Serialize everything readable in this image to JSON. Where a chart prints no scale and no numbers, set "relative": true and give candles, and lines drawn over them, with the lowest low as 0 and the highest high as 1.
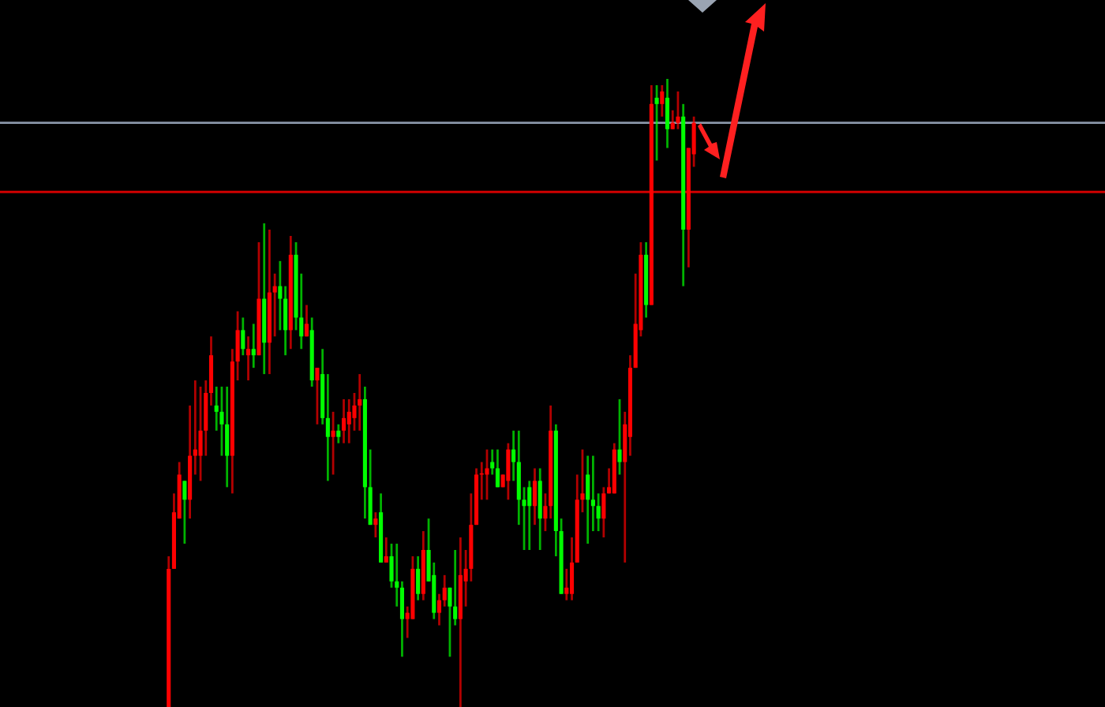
{
  "chart_data": {
    "type": "candlestick",
    "relative": true,
    "categories": [
      null,
      null,
      null,
      null,
      null,
      null,
      null,
      null,
      null,
      null,
      null,
      null,
      null,
      null,
      null,
      null,
      null,
      null,
      null,
      null,
      null,
      null,
      null,
      null,
      null,
      null,
      null,
      null,
      null,
      null,
      null,
      null,
      null,
      null,
      null,
      null,
      null,
      null,
      null,
      null,
      null,
      null,
      null,
      null,
      null,
      null,
      null,
      null,
      null,
      null,
      null,
      null,
      null,
      null,
      null,
      null,
      null,
      null,
      null,
      null,
      null,
      null,
      null,
      null,
      null,
      null,
      null,
      null,
      null,
      null,
      null,
      null,
      null,
      null,
      null,
      null,
      null,
      null,
      null,
      null,
      null,
      null,
      null,
      null,
      null,
      null,
      null,
      null,
      null,
      null,
      null,
      null,
      null,
      null,
      null,
      null,
      null,
      null,
      null,
      null
    ],
    "ohlc": [
      [
        0,
        0.24,
        0,
        0.22
      ],
      [
        0.22,
        0.34,
        0.22,
        0.31
      ],
      [
        0.3,
        0.39,
        0.3,
        0.37
      ],
      [
        0.36,
        0.36,
        0.26,
        0.33
      ],
      [
        0.33,
        0.48,
        0.3,
        0.4
      ],
      [
        0.4,
        0.52,
        0.37,
        0.41
      ],
      [
        0.4,
        0.51,
        0.36,
        0.44
      ],
      [
        0.44,
        0.52,
        0.4,
        0.5
      ],
      [
        0.5,
        0.59,
        0.48,
        0.56
      ],
      [
        0.48,
        0.51,
        0.44,
        0.47
      ],
      [
        0.47,
        0.51,
        0.4,
        0.45
      ],
      [
        0.45,
        0.51,
        0.35,
        0.4
      ],
      [
        0.4,
        0.57,
        0.34,
        0.55
      ],
      [
        0.55,
        0.63,
        0.52,
        0.6
      ],
      [
        0.6,
        0.62,
        0.56,
        0.57
      ],
      [
        0.56,
        0.59,
        0.52,
        0.57
      ],
      [
        0.57,
        0.61,
        0.54,
        0.56
      ],
      [
        0.56,
        0.74,
        0.56,
        0.65
      ],
      [
        0.65,
        0.77,
        0.53,
        0.58
      ],
      [
        0.58,
        0.76,
        0.53,
        0.66
      ],
      [
        0.66,
        0.69,
        0.59,
        0.67
      ],
      [
        0.67,
        0.71,
        0.6,
        0.65
      ],
      [
        0.65,
        0.67,
        0.56,
        0.6
      ],
      [
        0.6,
        0.75,
        0.57,
        0.72
      ],
      [
        0.72,
        0.74,
        0.6,
        0.62
      ],
      [
        0.62,
        0.69,
        0.57,
        0.59
      ],
      [
        0.59,
        0.64,
        0.59,
        0.61
      ],
      [
        0.6,
        0.62,
        0.51,
        0.52
      ],
      [
        0.52,
        0.54,
        0.45,
        0.54
      ],
      [
        0.53,
        0.57,
        0.45,
        0.46
      ],
      [
        0.46,
        0.53,
        0.36,
        0.43
      ],
      [
        0.43,
        0.47,
        0.37,
        0.44
      ],
      [
        0.44,
        0.45,
        0.42,
        0.43
      ],
      [
        0.44,
        0.49,
        0.42,
        0.46
      ],
      [
        0.45,
        0.49,
        0.42,
        0.47
      ],
      [
        0.46,
        0.5,
        0.44,
        0.48
      ],
      [
        0.48,
        0.53,
        0.44,
        0.49
      ],
      [
        0.49,
        0.51,
        0.3,
        0.35
      ],
      [
        0.35,
        0.41,
        0.29,
        0.29
      ],
      [
        0.29,
        0.31,
        0.27,
        0.3
      ],
      [
        0.31,
        0.34,
        0.23,
        0.23
      ],
      [
        0.23,
        0.27,
        0.23,
        0.24
      ],
      [
        0.24,
        0.26,
        0.19,
        0.2
      ],
      [
        0.2,
        0.26,
        0.16,
        0.19
      ],
      [
        0.19,
        0.2,
        0.08,
        0.14
      ],
      [
        0.14,
        0.16,
        0.11,
        0.15
      ],
      [
        0.14,
        0.24,
        0.14,
        0.22
      ],
      [
        0.22,
        0.24,
        0.17,
        0.18
      ],
      [
        0.18,
        0.28,
        0.17,
        0.25
      ],
      [
        0.25,
        0.3,
        0.2,
        0.2
      ],
      [
        0.21,
        0.23,
        0.14,
        0.15
      ],
      [
        0.15,
        0.18,
        0.13,
        0.17
      ],
      [
        0.17,
        0.21,
        0.16,
        0.19
      ],
      [
        0.19,
        0.19,
        0.08,
        0.16
      ],
      [
        0.16,
        0.25,
        0.13,
        0.14
      ],
      [
        0.14,
        0.27,
        0,
        0.21
      ],
      [
        0.2,
        0.25,
        0.16,
        0.22
      ],
      [
        0.22,
        0.34,
        0.2,
        0.29
      ],
      [
        0.29,
        0.38,
        0.29,
        0.37
      ],
      [
        0.37,
        0.39,
        0.33,
        0.37
      ],
      [
        0.37,
        0.41,
        0.33,
        0.38
      ],
      [
        0.39,
        0.41,
        0.37,
        0.38
      ],
      [
        0.38,
        0.41,
        0.35,
        0.35
      ],
      [
        0.35,
        0.37,
        0.35,
        0.37
      ],
      [
        0.36,
        0.42,
        0.33,
        0.41
      ],
      [
        0.41,
        0.44,
        0.36,
        0.39
      ],
      [
        0.39,
        0.44,
        0.29,
        0.33
      ],
      [
        0.33,
        0.35,
        0.25,
        0.32
      ],
      [
        0.35,
        0.36,
        0.25,
        0.32
      ],
      [
        0.32,
        0.38,
        0.29,
        0.36
      ],
      [
        0.36,
        0.38,
        0.25,
        0.3
      ],
      [
        0.3,
        0.34,
        0.28,
        0.32
      ],
      [
        0.32,
        0.48,
        0.3,
        0.44
      ],
      [
        0.44,
        0.45,
        0.24,
        0.28
      ],
      [
        0.28,
        0.3,
        0.18,
        0.18
      ],
      [
        0.18,
        0.22,
        0.17,
        0.19
      ],
      [
        0.18,
        0.27,
        0.17,
        0.23
      ],
      [
        0.23,
        0.37,
        0.23,
        0.33
      ],
      [
        0.33,
        0.41,
        0.31,
        0.34
      ],
      [
        0.37,
        0.4,
        0.26,
        0.33
      ],
      [
        0.33,
        0.4,
        0.28,
        0.32
      ],
      [
        0.32,
        0.34,
        0.28,
        0.3
      ],
      [
        0.3,
        0.35,
        0.27,
        0.34
      ],
      [
        0.34,
        0.38,
        0.34,
        0.35
      ],
      [
        0.34,
        0.42,
        0.34,
        0.41
      ],
      [
        0.41,
        0.49,
        0.37,
        0.39
      ],
      [
        0.39,
        0.47,
        0.23,
        0.45
      ],
      [
        0.43,
        0.56,
        0.4,
        0.54
      ],
      [
        0.54,
        0.69,
        0.54,
        0.61
      ],
      [
        0.6,
        0.74,
        0.59,
        0.72
      ],
      [
        0.72,
        0.74,
        0.62,
        0.64
      ],
      [
        0.64,
        0.99,
        0.64,
        0.96
      ],
      [
        0.97,
        0.99,
        0.87,
        0.96
      ],
      [
        0.96,
        0.99,
        0.94,
        0.98
      ],
      [
        0.97,
        1.0,
        0.89,
        0.92
      ],
      [
        0.92,
        0.95,
        0.92,
        0.93
      ],
      [
        0.93,
        0.98,
        0.92,
        0.94
      ],
      [
        0.94,
        0.96,
        0.67,
        0.76
      ],
      [
        0.76,
        0.89,
        0.7,
        0.89
      ],
      [
        0.88,
        0.94,
        0.86,
        0.93
      ]
    ],
    "colors": [
      "#ff0000",
      "#ff0000",
      "#ff0000",
      "#00ff00",
      "#ff0000",
      "#ff0000",
      "#ff0000",
      "#ff0000",
      "#ff0000",
      "#00ff00",
      "#00ff00",
      "#00ff00",
      "#ff0000",
      "#ff0000",
      "#00ff00",
      "#ff0000",
      "#00ff00",
      "#ff0000",
      "#00ff00",
      "#ff0000",
      "#ff0000",
      "#00ff00",
      "#00ff00",
      "#ff0000",
      "#00ff00",
      "#00ff00",
      "#ff0000",
      "#00ff00",
      "#ff0000",
      "#00ff00",
      "#00ff00",
      "#ff0000",
      "#00ff00",
      "#ff0000",
      "#ff0000",
      "#ff0000",
      "#ff0000",
      "#00ff00",
      "#00ff00",
      "#ff0000",
      "#00ff00",
      "#ff0000",
      "#00ff00",
      "#00ff00",
      "#00ff00",
      "#ff0000",
      "#ff0000",
      "#00ff00",
      "#ff0000",
      "#00ff00",
      "#00ff00",
      "#ff0000",
      "#ff0000",
      "#00ff00",
      "#00ff00",
      "#ff0000",
      "#ff0000",
      "#ff0000",
      "#ff0000",
      "#ff0000",
      "#ff0000",
      "#00ff00",
      "#00ff00",
      "#ff0000",
      "#ff0000",
      "#00ff00",
      "#00ff00",
      "#00ff00",
      "#00ff00",
      "#ff0000",
      "#00ff00",
      "#ff0000",
      "#ff0000",
      "#00ff00",
      "#00ff00",
      "#ff0000",
      "#ff0000",
      "#ff0000",
      "#ff0000",
      "#00ff00",
      "#00ff00",
      "#00ff00",
      "#ff0000",
      "#ff0000",
      "#ff0000",
      "#00ff00",
      "#ff0000",
      "#ff0000",
      "#ff0000",
      "#ff0000",
      "#00ff00",
      "#ff0000",
      "#00ff00",
      "#ff0000",
      "#00ff00",
      "#ff0000",
      "#ff0000",
      "#00ff00",
      "#ff0000",
      "#ff0000"
    ],
    "ref_lines": [
      {
        "axis": "y",
        "value": 0.93,
        "color": "#8a96a8",
        "line_style": "solid"
      },
      {
        "axis": "y",
        "value": 0.82,
        "color": "#d00000",
        "line_style": "solid"
      }
    ]
  }
}
